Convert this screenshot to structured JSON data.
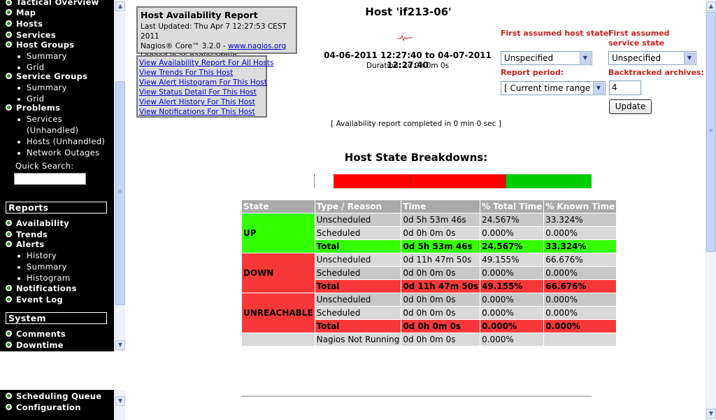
{
  "sidebar": {
    "top_items": [
      {
        "label": "Tactical Overview"
      },
      {
        "label": "Map"
      },
      {
        "label": "Hosts"
      },
      {
        "label": "Services"
      },
      {
        "label": "Host Groups"
      }
    ],
    "host_groups_sub": [
      "Summary",
      "Grid"
    ],
    "service_groups": {
      "label": "Service Groups",
      "sub": [
        "Summary",
        "Grid"
      ]
    },
    "problems": {
      "label": "Problems",
      "sub": [
        "Services",
        "(Unhandled)",
        "Hosts (Unhandled)",
        "Network Outages"
      ]
    },
    "quick_search_label": "Quick Search:",
    "quick_search_value": "",
    "reports_header": "Reports",
    "reports": {
      "availability": "Availability",
      "trends": "Trends",
      "alerts": "Alerts",
      "alerts_sub": [
        "History",
        "Summary",
        "Histogram"
      ],
      "notifications": "Notifications",
      "event_log": "Event Log"
    },
    "system_header": "System",
    "system": {
      "comments": "Comments",
      "downtime": "Downtime",
      "scheduling_queue": "Scheduling Queue",
      "configuration": "Configuration"
    }
  },
  "info": {
    "title": "Host Availability Report",
    "last_updated": "Last Updated: Thu Apr 7 12:27:53 CEST 2011",
    "nagios_prefix": "Nagios® Core™ 3.2.0 - ",
    "nagios_link": "www.nagios.org",
    "logged_prefix": "Logged in as ",
    "logged_user": "nagiosadmin"
  },
  "links": [
    "View Availability Report For All Hosts",
    "View Trends For This Host",
    "View Alert Histogram For This Host",
    "View Status Detail For This Host",
    "View Alert History For This Host",
    "View Notifications For This Host"
  ],
  "host": {
    "title": "Host 'if213-06'",
    "range_start": "04-06-2011 12:27:40",
    "range_to": "to",
    "range_end": "04-07-2011 12:27:40",
    "duration": "Duration: 1d 0h 0m 0s"
  },
  "options": {
    "host_state_label": "First assumed host state:",
    "host_state_value": "Unspecified",
    "service_state_label": "First assumed service state",
    "service_state_value": "Unspecified",
    "period_label": "Report period:",
    "period_value": "[ Current time range ]",
    "backtracked_label": "Backtracked archives:",
    "backtracked_value": "4",
    "update_label": "Update"
  },
  "report_complete": "[ Availability report completed in 0 min 0 sec ]",
  "breakdowns_title": "Host State Breakdowns:",
  "state_bar": [
    {
      "state": "DOWN",
      "fraction": 0.298,
      "color": "#ff0000"
    },
    {
      "state": "DOWN",
      "fraction": 0.37,
      "color": "#ff0000"
    },
    {
      "state": "UP",
      "fraction": 0.332,
      "color": "#00cc00"
    }
  ],
  "table": {
    "headers": [
      "State",
      "Type / Reason",
      "Time",
      "% Total Time",
      "% Known Time"
    ],
    "groups": [
      {
        "state": "UP",
        "kind": "up",
        "rows": [
          [
            "Unscheduled",
            "0d 5h 53m 46s",
            "24.567%",
            "33.324%"
          ],
          [
            "Scheduled",
            "0d 0h 0m 0s",
            "0.000%",
            "0.000%"
          ],
          [
            "Total",
            "0d 5h 53m 46s",
            "24.567%",
            "33.324%"
          ]
        ]
      },
      {
        "state": "DOWN",
        "kind": "down",
        "rows": [
          [
            "Unscheduled",
            "0d 11h 47m 50s",
            "49.155%",
            "66.676%"
          ],
          [
            "Scheduled",
            "0d 0h 0m 0s",
            "0.000%",
            "0.000%"
          ],
          [
            "Total",
            "0d 11h 47m 50s",
            "49.155%",
            "66.676%"
          ]
        ]
      },
      {
        "state": "UNREACHABLE",
        "kind": "down",
        "rows": [
          [
            "Unscheduled",
            "0d 0h 0m 0s",
            "0.000%",
            "0.000%"
          ],
          [
            "Scheduled",
            "0d 0h 0m 0s",
            "0.000%",
            "0.000%"
          ],
          [
            "Total",
            "0d 0h 0m 0s",
            "0.000%",
            "0.000%"
          ]
        ]
      }
    ],
    "nagios_not_running": [
      "Nagios Not Running",
      "0d 0h 0m 0s",
      "0.000%",
      ""
    ]
  }
}
